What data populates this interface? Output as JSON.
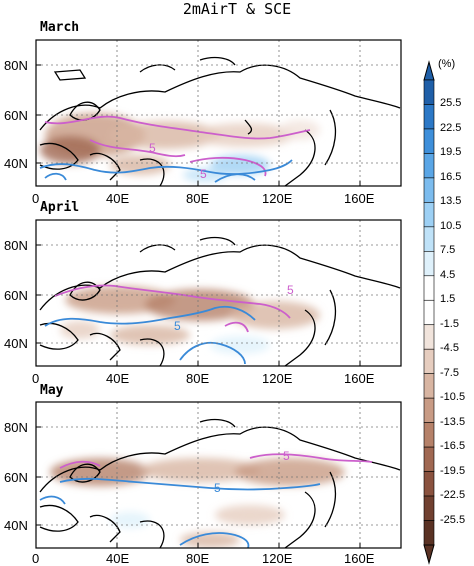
{
  "figure": {
    "title": "2mAirT & SCE",
    "colorbar": {
      "unit_label": "(%)",
      "levels": [
        "25.5",
        "22.5",
        "19.5",
        "16.5",
        "13.5",
        "10.5",
        "7.5",
        "4.5",
        "1.5",
        "-1.5",
        "-4.5",
        "-7.5",
        "-10.5",
        "-13.5",
        "-16.5",
        "-19.5",
        "-22.5",
        "-25.5"
      ],
      "colors": [
        "#1f5fa8",
        "#2c78c6",
        "#3e8fda",
        "#5aa6e6",
        "#7cbcee",
        "#9dd0f4",
        "#bfe2f8",
        "#dff1fb",
        "#ffffff",
        "#ffffff",
        "#f1e4dc",
        "#e6cdbf",
        "#d8b5a2",
        "#c89b85",
        "#b58169",
        "#a06852",
        "#8a523f",
        "#704030",
        "#5a3224"
      ],
      "tip_top_color": "#1f5fa8",
      "tip_bottom_color": "#5a3224"
    },
    "contour_label": "5",
    "contour_colors": {
      "pink": "#cc5fcc",
      "blue": "#3a8ad8"
    }
  },
  "panels": [
    {
      "name": "March"
    },
    {
      "name": "April"
    },
    {
      "name": "May"
    }
  ],
  "axes": {
    "lat_ticks": [
      "80N",
      "60N",
      "40N"
    ],
    "lon_ticks": [
      "0",
      "40E",
      "80E",
      "120E",
      "160E"
    ]
  }
}
